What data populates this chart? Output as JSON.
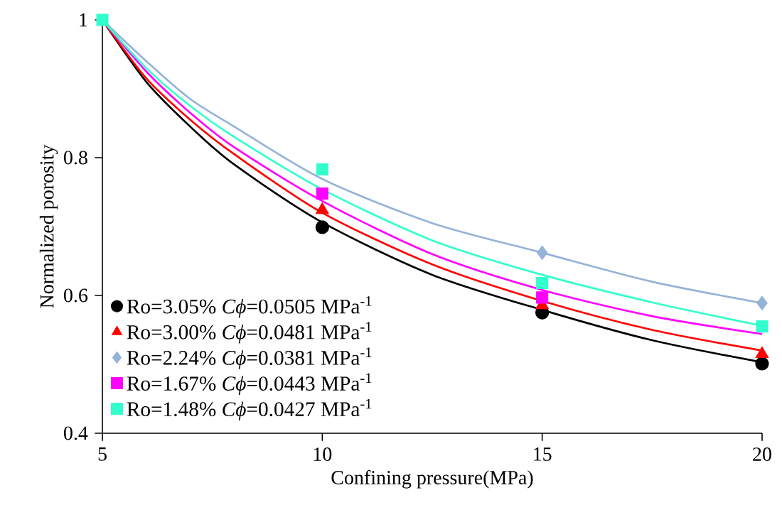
{
  "chart_data": {
    "type": "scatter",
    "xlabel": "Confining pressure(MPa)",
    "ylabel": "Normalized porosity",
    "xlim": [
      5,
      20
    ],
    "ylim": [
      0.4,
      1
    ],
    "xticks": [
      5,
      10,
      15,
      20
    ],
    "yticks": [
      0.4,
      0.6,
      0.8,
      1
    ],
    "grid": false,
    "legend": "bottom left",
    "series": [
      {
        "type": "line",
        "color": "#000000",
        "x": [
          5,
          6,
          7,
          8,
          10,
          12.5,
          15,
          17.5,
          20
        ],
        "values": [
          1,
          0.91,
          0.845,
          0.79,
          0.706,
          0.63,
          0.579,
          0.535,
          0.503
        ],
        "marker": "none",
        "line_style": "solid"
      },
      {
        "type": "line",
        "color": "#ff0000",
        "x": [
          5,
          6,
          7,
          8,
          10,
          12.5,
          15,
          17.5,
          20
        ],
        "values": [
          1,
          0.915,
          0.855,
          0.805,
          0.72,
          0.645,
          0.592,
          0.55,
          0.52
        ],
        "marker": "none",
        "line_style": "solid"
      },
      {
        "type": "line",
        "color": "#95b3d7",
        "x": [
          5,
          6,
          7,
          8,
          10,
          12.5,
          15,
          17.5,
          20
        ],
        "values": [
          1,
          0.94,
          0.885,
          0.845,
          0.769,
          0.705,
          0.662,
          0.62,
          0.589
        ],
        "marker": "none",
        "line_style": "solid"
      },
      {
        "type": "line",
        "color": "#ff00ff",
        "x": [
          5,
          6,
          7,
          8,
          10,
          12.5,
          15,
          17.5,
          20
        ],
        "values": [
          1,
          0.925,
          0.865,
          0.815,
          0.737,
          0.66,
          0.608,
          0.57,
          0.544
        ],
        "marker": "none",
        "line_style": "solid"
      },
      {
        "type": "line",
        "color": "#33ffcc",
        "x": [
          5,
          6,
          7,
          8,
          10,
          12.5,
          15,
          17.5,
          20
        ],
        "values": [
          1,
          0.93,
          0.875,
          0.83,
          0.754,
          0.68,
          0.63,
          0.59,
          0.556
        ],
        "marker": "none",
        "line_style": "solid"
      },
      {
        "name": "Ro=3.05% *Cϕ*=0.0505 MPa$^{-1}$",
        "color": "#000000",
        "x": [
          10,
          15,
          20
        ],
        "values": [
          0.699,
          0.575,
          0.501
        ],
        "marker": "circle"
      },
      {
        "name": "Ro=3.00% *Cϕ*=0.0481 MPa$^{-1}$",
        "color": "#ff0000",
        "x": [
          10,
          15,
          20
        ],
        "values": [
          0.724,
          0.586,
          0.515
        ],
        "marker": "triangle"
      },
      {
        "name": "Ro=2.24% *Cϕ*=0.0381 MPa$^{-1}$",
        "color": "#95b3d7",
        "x": [
          15,
          20
        ],
        "values": [
          0.662,
          0.589
        ],
        "marker": "diamond"
      },
      {
        "name": "Ro=1.67% *Cϕ*=0.0443 MPa$^{-1}$",
        "color": "#ff00ff",
        "x": [
          10,
          15
        ],
        "values": [
          0.748,
          0.597
        ],
        "marker": "square"
      },
      {
        "name": "Ro=1.48% *Cϕ*=0.0427 MPa$^{-1}$",
        "color": "#33ffcc",
        "x": [
          5,
          10,
          15,
          20
        ],
        "values": [
          1,
          0.783,
          0.618,
          0.555
        ],
        "marker": "square"
      }
    ]
  }
}
